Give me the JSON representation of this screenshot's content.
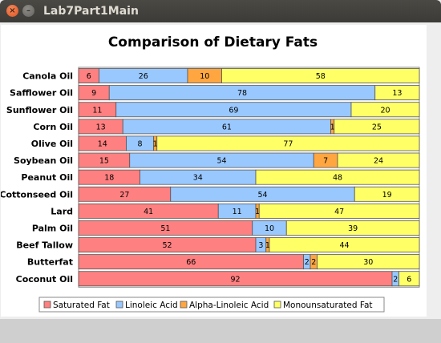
{
  "window": {
    "title": "Lab7Part1Main",
    "close_glyph": "×",
    "minimize_glyph": "–"
  },
  "chart_data": {
    "type": "bar",
    "orientation": "horizontal",
    "stacked": "percent",
    "title": "Comparison of Dietary Fats",
    "xlabel": "",
    "ylabel": "",
    "xlim": [
      0,
      100
    ],
    "grid": false,
    "legend": "bottom",
    "categories": [
      "Canola Oil",
      "Safflower Oil",
      "Sunflower Oil",
      "Corn Oil",
      "Olive Oil",
      "Soybean Oil",
      "Peanut Oil",
      "Cottonseed Oil",
      "Lard",
      "Palm Oil",
      "Beef Tallow",
      "Butterfat",
      "Coconut Oil"
    ],
    "series": [
      {
        "name": "Saturated Fat",
        "color": "#ff8080",
        "values": [
          6,
          9,
          11,
          13,
          14,
          15,
          18,
          27,
          41,
          51,
          52,
          66,
          92
        ]
      },
      {
        "name": "Linoleic Acid",
        "color": "#99c8ff",
        "values": [
          26,
          78,
          69,
          61,
          8,
          54,
          34,
          54,
          11,
          10,
          3,
          2,
          2
        ]
      },
      {
        "name": "Alpha-Linoleic Acid",
        "color": "#ffa640",
        "values": [
          10,
          0,
          0,
          1,
          1,
          7,
          0,
          0,
          1,
          0,
          1,
          2,
          0
        ]
      },
      {
        "name": "Monounsaturated Fat",
        "color": "#ffff66",
        "values": [
          58,
          13,
          20,
          25,
          77,
          24,
          48,
          19,
          47,
          39,
          44,
          30,
          6
        ]
      }
    ]
  }
}
